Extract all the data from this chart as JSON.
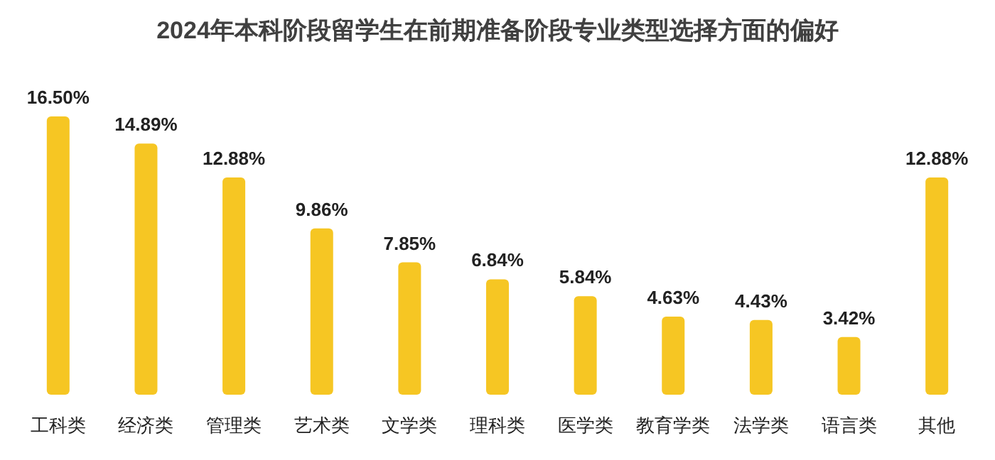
{
  "chart_data": {
    "type": "bar",
    "title": "2024年本科阶段留学生在前期准备阶段专业类型选择方面的偏好",
    "categories": [
      "工科类",
      "经济类",
      "管理类",
      "艺术类",
      "文学类",
      "理科类",
      "医学类",
      "教育学类",
      "法学类",
      "语言类",
      "其他"
    ],
    "values": [
      16.5,
      14.89,
      12.88,
      9.86,
      7.85,
      6.84,
      5.84,
      4.63,
      4.43,
      3.42,
      12.88
    ],
    "value_labels": [
      "16.50%",
      "14.89%",
      "12.88%",
      "9.86%",
      "7.85%",
      "6.84%",
      "5.84%",
      "4.63%",
      "4.43%",
      "3.42%",
      "12.88%"
    ],
    "color": "#f6c623"
  }
}
